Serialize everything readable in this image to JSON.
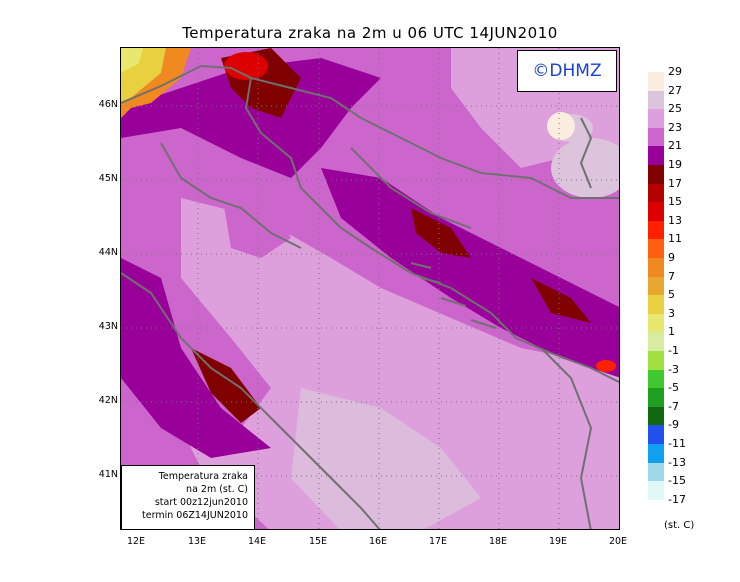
{
  "title": "Temperatura zraka na 2m u 06 UTC 14JUN2010",
  "logo": "©DHMZ",
  "info": {
    "line1": "Temperatura zraka",
    "line2": "na 2m (st. C)",
    "line3": "start 00z12jun2010",
    "line4": "termin 06Z14JUN2010"
  },
  "map": {
    "lat_ticks": [
      "46N",
      "45N",
      "44N",
      "43N",
      "42N",
      "41N"
    ],
    "lon_ticks": [
      "12E",
      "13E",
      "14E",
      "15E",
      "16E",
      "17E",
      "18E",
      "19E",
      "20E"
    ],
    "lat_range": [
      40.3,
      46.7
    ],
    "lon_range": [
      11.8,
      20.0
    ],
    "gridlines": "dotted"
  },
  "legend": {
    "unit": "(st. C)",
    "labels": [
      "29",
      "27",
      "25",
      "23",
      "21",
      "19",
      "17",
      "15",
      "13",
      "11",
      "9",
      "7",
      "5",
      "3",
      "1",
      "-1",
      "-3",
      "-5",
      "-7",
      "-9",
      "-11",
      "-13",
      "-15",
      "-17"
    ],
    "colors": [
      "#fbeee0",
      "#dcc4dc",
      "#dda0dd",
      "#cc66cc",
      "#990099",
      "#800000",
      "#b40000",
      "#dc0000",
      "#ff2000",
      "#ff6010",
      "#f08a20",
      "#e8a830",
      "#e8d040",
      "#e8e870",
      "#d8eca0",
      "#a0e040",
      "#40c830",
      "#20a020",
      "#106810",
      "#2050f0",
      "#10a0f0",
      "#a0d8e8",
      "#e0f8f8"
    ]
  },
  "colors": {
    "sea_base": "#cc66cc",
    "sea_warm": "#dda0dd",
    "coast_line": "#707070"
  }
}
